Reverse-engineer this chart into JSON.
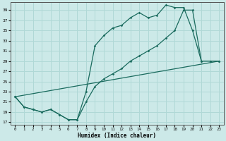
{
  "xlabel": "Humidex (Indice chaleur)",
  "bg_color": "#cce9e8",
  "grid_color": "#b0d8d6",
  "line_color": "#1a6b5e",
  "xlim": [
    -0.5,
    23.5
  ],
  "ylim": [
    16.5,
    40.5
  ],
  "xticks": [
    0,
    1,
    2,
    3,
    4,
    5,
    6,
    7,
    8,
    9,
    10,
    11,
    12,
    13,
    14,
    15,
    16,
    17,
    18,
    19,
    20,
    21,
    22,
    23
  ],
  "yticks": [
    17,
    19,
    21,
    23,
    25,
    27,
    29,
    31,
    33,
    35,
    37,
    39
  ],
  "series1_x": [
    0,
    1,
    2,
    3,
    4,
    5,
    6,
    7,
    8,
    9,
    10,
    11,
    12,
    13,
    14,
    15,
    16,
    17,
    18,
    19,
    20,
    21,
    22,
    23
  ],
  "series1_y": [
    22,
    20,
    19.5,
    19,
    19.5,
    18.5,
    17.5,
    17.5,
    23,
    32,
    34,
    35.5,
    36,
    37.5,
    38.5,
    37.5,
    38,
    40,
    39.5,
    39.5,
    35,
    29,
    29,
    29
  ],
  "series2_x": [
    0,
    1,
    2,
    3,
    4,
    5,
    6,
    7,
    8,
    9,
    10,
    11,
    12,
    13,
    14,
    15,
    16,
    17,
    18,
    19,
    20,
    21,
    22,
    23
  ],
  "series2_y": [
    22,
    20,
    19.5,
    19,
    19.5,
    18.5,
    17.5,
    17.5,
    21,
    24,
    25.5,
    26.5,
    27.5,
    29,
    30,
    31,
    32,
    33.5,
    35,
    39,
    39,
    29,
    29,
    29
  ],
  "series3_x": [
    0,
    23
  ],
  "series3_y": [
    22,
    29
  ]
}
